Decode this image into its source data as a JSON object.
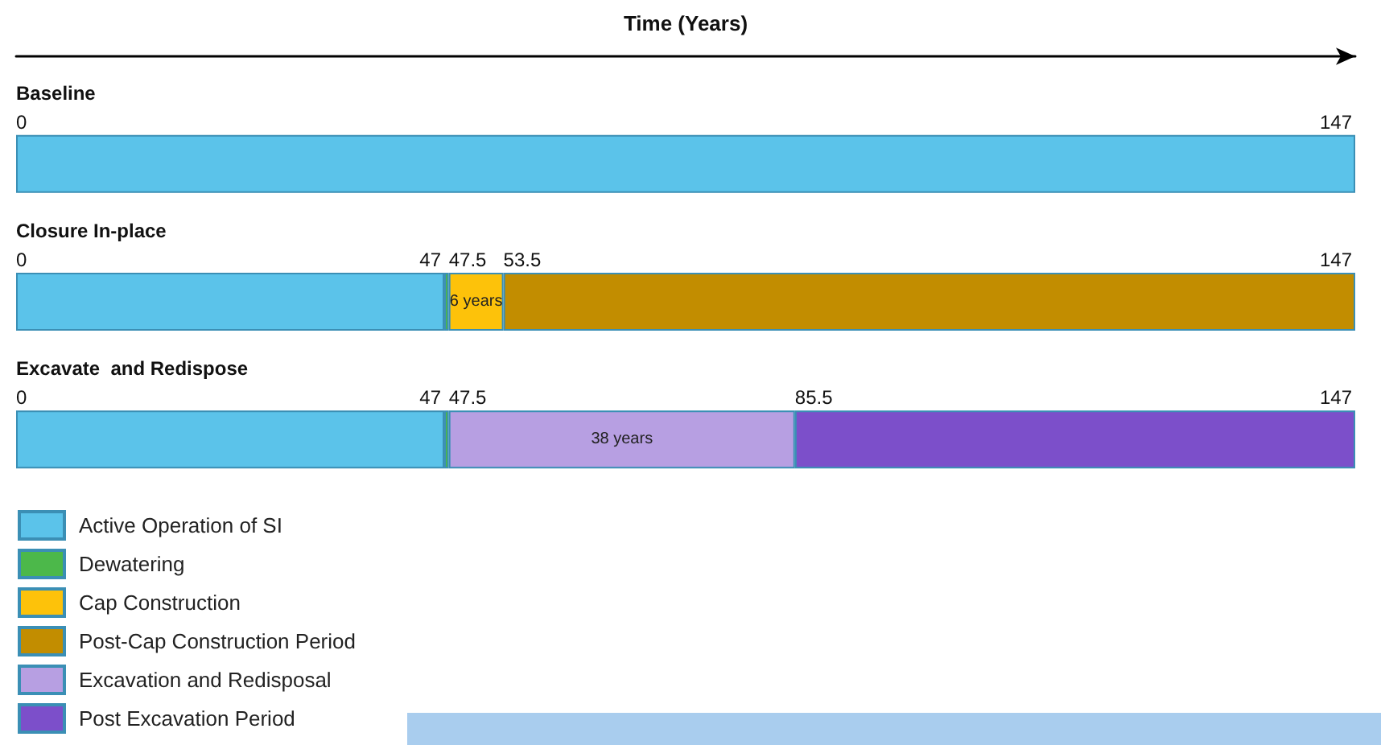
{
  "chart_data": {
    "type": "bar",
    "orientation": "horizontal",
    "stacked": true,
    "xlabel": "Time (Years)",
    "xlim": [
      0,
      147
    ],
    "tick_labels": "y",
    "legend": "bottom left",
    "categories": [
      "Baseline",
      "Closure In-place",
      "Excavate  and Redispose"
    ],
    "series": [
      {
        "name": "Active Operation of SI",
        "color": "#5bc3ea",
        "values": [
          147,
          47,
          47
        ]
      },
      {
        "name": "Dewatering",
        "color": "#4cb84a",
        "values": [
          null,
          0.5,
          0.5
        ]
      },
      {
        "name": "Cap Construction",
        "color": "#fdc20a",
        "values": [
          null,
          6,
          null
        ],
        "value_labels": [
          null,
          "6 years",
          null
        ]
      },
      {
        "name": "Post-Cap Construction Period",
        "color": "#c28d00",
        "values": [
          null,
          93.5,
          null
        ]
      },
      {
        "name": "Excavation and Redisposal",
        "color": "#b79fe2",
        "values": [
          null,
          null,
          38
        ],
        "value_labels": [
          null,
          null,
          "38 years"
        ]
      },
      {
        "name": "Post Excavation Period",
        "color": "#7c4fca",
        "values": [
          null,
          null,
          61.5
        ]
      }
    ],
    "annotations": [
      {
        "text": "0",
        "x": 0,
        "y": "Baseline"
      },
      {
        "text": "147",
        "x": 147,
        "y": "Baseline"
      },
      {
        "text": "0",
        "x": 0,
        "y": "Closure In-place"
      },
      {
        "text": "47",
        "x": 47,
        "y": "Closure In-place"
      },
      {
        "text": "47.5",
        "x": 47.5,
        "y": "Closure In-place"
      },
      {
        "text": "53.5",
        "x": 53.5,
        "y": "Closure In-place"
      },
      {
        "text": "147",
        "x": 147,
        "y": "Closure In-place"
      },
      {
        "text": "0",
        "x": 0,
        "y": "Excavate  and Redispose"
      },
      {
        "text": "47",
        "x": 47,
        "y": "Excavate  and Redispose"
      },
      {
        "text": "47.5",
        "x": 47.5,
        "y": "Excavate  and Redispose"
      },
      {
        "text": "85.5",
        "x": 85.5,
        "y": "Excavate  and Redispose"
      },
      {
        "text": "147",
        "x": 147,
        "y": "Excavate  and Redispose"
      }
    ]
  }
}
